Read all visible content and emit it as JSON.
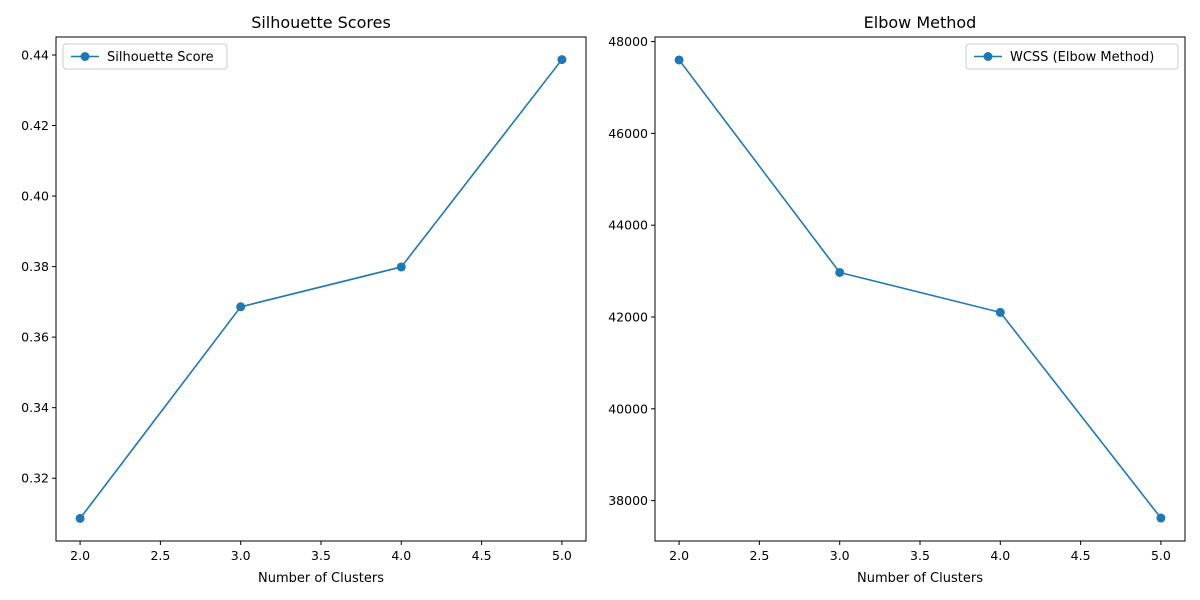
{
  "chart_data": [
    {
      "type": "line",
      "title": "Silhouette Scores",
      "xlabel": "Number of Clusters",
      "ylabel": "",
      "x": [
        2,
        3,
        4,
        5
      ],
      "series": [
        {
          "name": "Silhouette Score",
          "values": [
            0.3086,
            0.3686,
            0.3799,
            0.4387
          ],
          "color": "#1f77b4",
          "marker": "circle"
        }
      ],
      "xlim": [
        1.85,
        5.15
      ],
      "ylim": [
        0.3022,
        0.4451
      ],
      "xticks": [
        2.0,
        2.5,
        3.0,
        3.5,
        4.0,
        4.5,
        5.0
      ],
      "xtick_labels": [
        "2.0",
        "2.5",
        "3.0",
        "3.5",
        "4.0",
        "4.5",
        "5.0"
      ],
      "yticks": [
        0.32,
        0.34,
        0.36,
        0.38,
        0.4,
        0.42,
        0.44
      ],
      "ytick_labels": [
        "0.32",
        "0.34",
        "0.36",
        "0.38",
        "0.40",
        "0.42",
        "0.44"
      ],
      "legend": "upper-left",
      "grid": false
    },
    {
      "type": "line",
      "title": "Elbow Method",
      "xlabel": "Number of Clusters",
      "ylabel": "",
      "x": [
        2,
        3,
        4,
        5
      ],
      "series": [
        {
          "name": "WCSS (Elbow Method)",
          "values": [
            47600,
            42970,
            42100,
            37620
          ],
          "color": "#1f77b4",
          "marker": "circle"
        }
      ],
      "xlim": [
        1.85,
        5.15
      ],
      "ylim": [
        37120,
        48100
      ],
      "xticks": [
        2.0,
        2.5,
        3.0,
        3.5,
        4.0,
        4.5,
        5.0
      ],
      "xtick_labels": [
        "2.0",
        "2.5",
        "3.0",
        "3.5",
        "4.0",
        "4.5",
        "5.0"
      ],
      "yticks": [
        38000,
        40000,
        42000,
        44000,
        46000,
        48000
      ],
      "ytick_labels": [
        "38000",
        "40000",
        "42000",
        "44000",
        "46000",
        "48000"
      ],
      "legend": "upper-right",
      "grid": false
    }
  ]
}
